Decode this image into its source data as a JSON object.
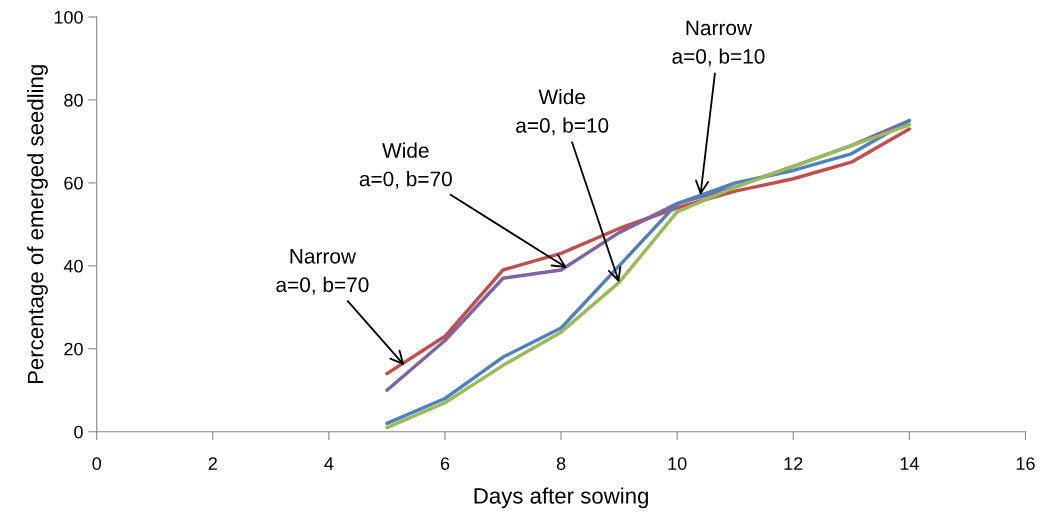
{
  "chart_data": {
    "type": "line",
    "xlabel": "Days after sowing",
    "ylabel": "Percentage of emerged seedling",
    "x": [
      5,
      6,
      7,
      8,
      9,
      10,
      11,
      12,
      13,
      14
    ],
    "series": [
      {
        "color": "#c0504d",
        "values": [
          14,
          23,
          39,
          43,
          49,
          54,
          58,
          61,
          65,
          73
        ]
      },
      {
        "color": "#8064a2",
        "values": [
          10,
          22,
          37,
          39,
          48,
          55,
          59,
          64,
          69,
          75
        ]
      },
      {
        "color": "#4f81bd",
        "values": [
          2,
          8,
          18,
          25,
          40,
          55,
          60,
          63,
          67,
          75
        ]
      },
      {
        "color": "#9bbb59",
        "values": [
          1,
          7,
          16,
          24,
          36,
          53,
          59,
          64,
          69,
          74
        ]
      }
    ],
    "xlim": [
      0,
      16
    ],
    "xticks": [
      0,
      2,
      4,
      6,
      8,
      10,
      12,
      14,
      16
    ],
    "ylim": [
      0,
      100
    ],
    "yticks": [
      0,
      20,
      40,
      60,
      80,
      100
    ],
    "grid": false,
    "marker": "none",
    "line_style": "solid",
    "annotations": [
      {
        "text": "Narrow\na=0, b=70",
        "x": 5.3,
        "y": 16
      },
      {
        "text": "Wide\na=0, b=70",
        "x": 8.1,
        "y": 39.5
      },
      {
        "text": "Wide\na=0, b=10",
        "x": 9,
        "y": 36
      },
      {
        "text": "Narrow\na=0, b=10",
        "x": 10.4,
        "y": 57
      }
    ]
  }
}
